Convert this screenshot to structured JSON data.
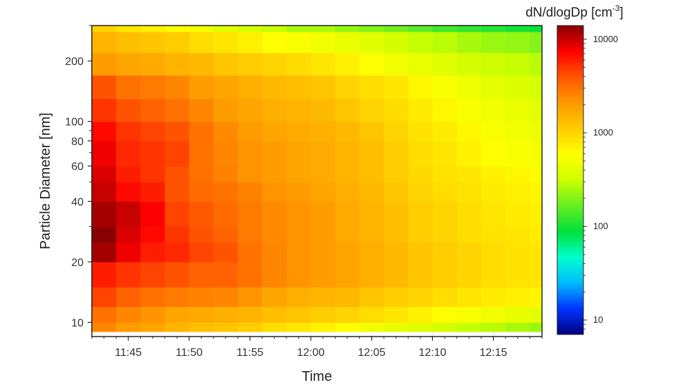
{
  "chart_data": {
    "type": "heatmap",
    "title": "",
    "xlabel": "Time",
    "ylabel": "Particle Diameter [nm]",
    "colorbar": {
      "label_main": "dN/dlogDp [cm",
      "label_sup": "-3",
      "label_tail": "]",
      "scale": "log",
      "range": [
        7,
        14000
      ],
      "ticks": [
        10,
        100,
        1000,
        10000
      ],
      "tick_labels": [
        "10",
        "100",
        "1000",
        "10000"
      ],
      "colors": [
        "#000080",
        "#0033ff",
        "#00bbff",
        "#00ffcc",
        "#00e03a",
        "#66ee22",
        "#ccff00",
        "#ffff00",
        "#ffcc00",
        "#ff9900",
        "#ff5500",
        "#ff0000",
        "#880000"
      ]
    },
    "x_axis": {
      "range_minutes": [
        "11:42",
        "12:19"
      ],
      "ticks": [
        "11:45",
        "11:50",
        "11:55",
        "12:00",
        "12:05",
        "12:10",
        "12:15"
      ]
    },
    "y_axis": {
      "scale": "log",
      "range": [
        8.5,
        300
      ],
      "ticks": [
        10,
        20,
        40,
        60,
        80,
        100,
        200
      ],
      "tick_labels": [
        "10",
        "20",
        "40",
        "60",
        "80",
        "100",
        "200"
      ],
      "minor_ticks": [
        30,
        50,
        70,
        90,
        300
      ]
    },
    "grid": true,
    "time_bins": [
      "11:42",
      "11:44",
      "11:46",
      "11:48",
      "11:50",
      "11:52",
      "11:54",
      "11:56",
      "11:58",
      "12:00",
      "12:02",
      "12:04",
      "12:06",
      "12:08",
      "12:10",
      "12:12",
      "12:14",
      "12:16",
      "12:18"
    ],
    "diameter_bins": [
      9,
      10,
      12,
      15,
      20,
      25,
      30,
      40,
      50,
      60,
      80,
      100,
      130,
      170,
      220,
      280
    ],
    "values": [
      [
        2500,
        3000,
        4500,
        6000,
        12000,
        14000,
        12000,
        10000,
        9000,
        8000,
        7000,
        5000,
        4000,
        2000,
        1500,
        1000
      ],
      [
        2000,
        2500,
        3500,
        5000,
        8000,
        9000,
        10000,
        7000,
        6000,
        5500,
        5000,
        4000,
        3000,
        1800,
        1300,
        800
      ],
      [
        1800,
        2200,
        3000,
        4500,
        6000,
        7000,
        7500,
        6000,
        5000,
        5000,
        4500,
        3500,
        2800,
        1700,
        1200,
        700
      ],
      [
        1500,
        1800,
        2800,
        4000,
        5500,
        5000,
        4500,
        4000,
        4000,
        4500,
        4000,
        3000,
        2500,
        1500,
        1100,
        600
      ],
      [
        1300,
        1700,
        2600,
        3500,
        4500,
        4000,
        3800,
        3200,
        3000,
        3000,
        3000,
        2500,
        2000,
        1400,
        900,
        500
      ],
      [
        1200,
        1600,
        2500,
        3500,
        4000,
        3500,
        3200,
        3000,
        2600,
        2500,
        2400,
        2000,
        1800,
        1200,
        800,
        400
      ],
      [
        1100,
        1500,
        2200,
        3000,
        3000,
        2800,
        2800,
        2600,
        2200,
        2200,
        2000,
        1800,
        1600,
        1100,
        700,
        350
      ],
      [
        900,
        1300,
        1800,
        2500,
        2500,
        2400,
        2400,
        2200,
        2000,
        2000,
        1800,
        1600,
        1400,
        1000,
        600,
        300
      ],
      [
        800,
        1200,
        1600,
        2200,
        2200,
        2200,
        2200,
        2000,
        1800,
        1800,
        1700,
        1500,
        1300,
        900,
        550,
        250
      ],
      [
        700,
        1100,
        1500,
        2000,
        2000,
        2000,
        2000,
        1800,
        1700,
        1700,
        1600,
        1400,
        1200,
        800,
        500,
        250
      ],
      [
        600,
        1000,
        1400,
        1800,
        1800,
        1700,
        1700,
        1600,
        1500,
        1500,
        1400,
        1200,
        1000,
        700,
        450,
        220
      ],
      [
        500,
        900,
        1200,
        1600,
        1600,
        1500,
        1500,
        1400,
        1300,
        1300,
        1200,
        1000,
        900,
        600,
        400,
        200
      ],
      [
        450,
        800,
        1100,
        1400,
        1400,
        1300,
        1300,
        1200,
        1100,
        1100,
        1000,
        900,
        800,
        500,
        350,
        180
      ],
      [
        400,
        700,
        1000,
        1200,
        1200,
        1100,
        1100,
        1000,
        950,
        900,
        850,
        750,
        650,
        450,
        300,
        150
      ],
      [
        350,
        600,
        900,
        1100,
        1100,
        1000,
        1000,
        900,
        850,
        800,
        750,
        650,
        550,
        400,
        280,
        130
      ],
      [
        300,
        550,
        800,
        1000,
        1000,
        900,
        900,
        850,
        800,
        700,
        650,
        550,
        480,
        350,
        250,
        120
      ],
      [
        280,
        500,
        750,
        900,
        900,
        850,
        800,
        750,
        700,
        600,
        550,
        500,
        420,
        320,
        230,
        110
      ],
      [
        250,
        450,
        700,
        850,
        850,
        800,
        750,
        700,
        650,
        550,
        500,
        450,
        380,
        300,
        220,
        100
      ],
      [
        230,
        420,
        650,
        800,
        800,
        750,
        700,
        650,
        600,
        520,
        480,
        420,
        350,
        280,
        200,
        90
      ]
    ]
  }
}
